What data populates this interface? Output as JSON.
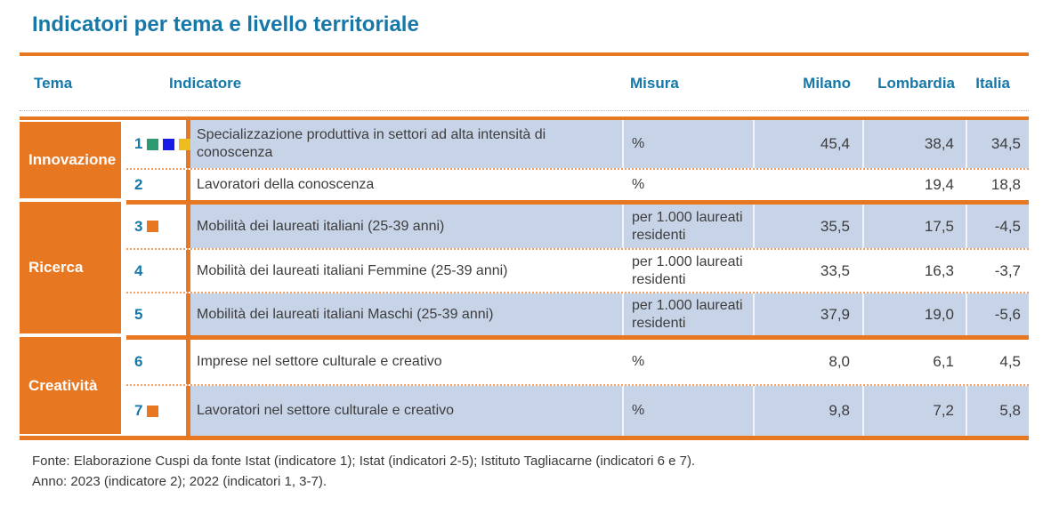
{
  "title": "Indicatori per tema e livello territoriale",
  "colors": {
    "accent_orange": "#e87722",
    "heading_blue": "#1578a9",
    "shaded_row": "#c7d3e7"
  },
  "header": {
    "tema": "Tema",
    "indicatore": "Indicatore",
    "misura": "Misura",
    "milano": "Milano",
    "lombardia": "Lombardia",
    "italia": "Italia"
  },
  "groups": [
    {
      "theme": "Innovazione",
      "rows": [
        {
          "num": "1",
          "markers": [
            "#2d9b72",
            "#1a1ae6",
            "#eebc1d"
          ],
          "indicatore": "Specializzazione produttiva in settori ad alta intensità di conoscenza",
          "misura": "%",
          "milano": "45,4",
          "lombardia": "38,4",
          "italia": "34,5"
        },
        {
          "num": "2",
          "markers": [],
          "indicatore": "Lavoratori della conoscenza",
          "misura": "%",
          "milano": "",
          "lombardia": "19,4",
          "italia": "18,8"
        }
      ]
    },
    {
      "theme": "Ricerca",
      "rows": [
        {
          "num": "3",
          "markers": [
            "#e87722"
          ],
          "indicatore": "Mobilità dei laureati italiani (25-39 anni)",
          "misura": "per 1.000 laureati residenti",
          "milano": "35,5",
          "lombardia": "17,5",
          "italia": "-4,5"
        },
        {
          "num": "4",
          "markers": [],
          "indicatore": "Mobilità dei laureati italiani Femmine (25-39 anni)",
          "misura": "per 1.000 laureati residenti",
          "milano": "33,5",
          "lombardia": "16,3",
          "italia": "-3,7"
        },
        {
          "num": "5",
          "markers": [],
          "indicatore": "Mobilità dei laureati italiani Maschi (25-39 anni)",
          "misura": "per 1.000 laureati residenti",
          "milano": "37,9",
          "lombardia": "19,0",
          "italia": "-5,6"
        }
      ]
    },
    {
      "theme": "Creatività",
      "rows": [
        {
          "num": "6",
          "markers": [],
          "indicatore": "Imprese nel settore culturale e creativo",
          "misura": "%",
          "milano": "8,0",
          "lombardia": "6,1",
          "italia": "4,5"
        },
        {
          "num": "7",
          "markers": [
            "#e87722"
          ],
          "indicatore": "Lavoratori nel settore culturale e creativo",
          "misura": "%",
          "milano": "9,8",
          "lombardia": "7,2",
          "italia": "5,8"
        }
      ]
    }
  ],
  "footer": {
    "fonte": "Fonte: Elaborazione Cuspi da fonte Istat (indicatore 1); Istat (indicatori 2-5); Istituto Tagliacarne (indicatori 6 e 7).",
    "anno": "Anno: 2023 (indicatore 2); 2022 (indicatori 1, 3-7)."
  }
}
